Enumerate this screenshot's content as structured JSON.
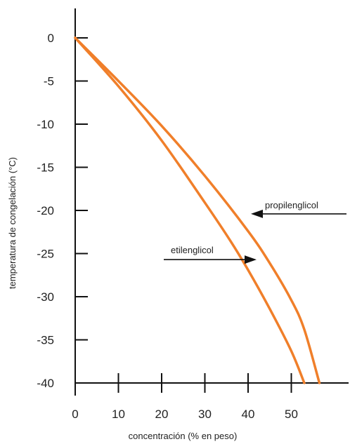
{
  "chart_data": {
    "type": "line",
    "xlabel": "concentración (% en peso)",
    "ylabel": "temperatura de congelación (°C)",
    "xlim": [
      0,
      62
    ],
    "ylim": [
      -40,
      3
    ],
    "x_ticks": [
      0,
      10,
      20,
      30,
      40,
      50
    ],
    "y_ticks": [
      0,
      -5,
      -10,
      -15,
      -20,
      -25,
      -30,
      -35,
      -40
    ],
    "series": [
      {
        "name": "etilenglicol",
        "color": "#f07f2a",
        "x": [
          0,
          10,
          20,
          30,
          36,
          40,
          45,
          50,
          53
        ],
        "y": [
          0,
          -5.6,
          -11.9,
          -19.1,
          -23.6,
          -26.9,
          -31.4,
          -36.3,
          -40
        ]
      },
      {
        "name": "propilenglicol",
        "color": "#f07f2a",
        "x": [
          0,
          10,
          20,
          30,
          40,
          45,
          50,
          53,
          56.5
        ],
        "y": [
          0,
          -5,
          -10.2,
          -16,
          -22.4,
          -26.1,
          -30.4,
          -33.8,
          -40
        ]
      }
    ],
    "annotations": [
      {
        "label": "propilenglicol",
        "arrow": "left",
        "target_series": 1
      },
      {
        "label": "etilenglicol",
        "arrow": "right",
        "target_series": 0
      }
    ]
  }
}
